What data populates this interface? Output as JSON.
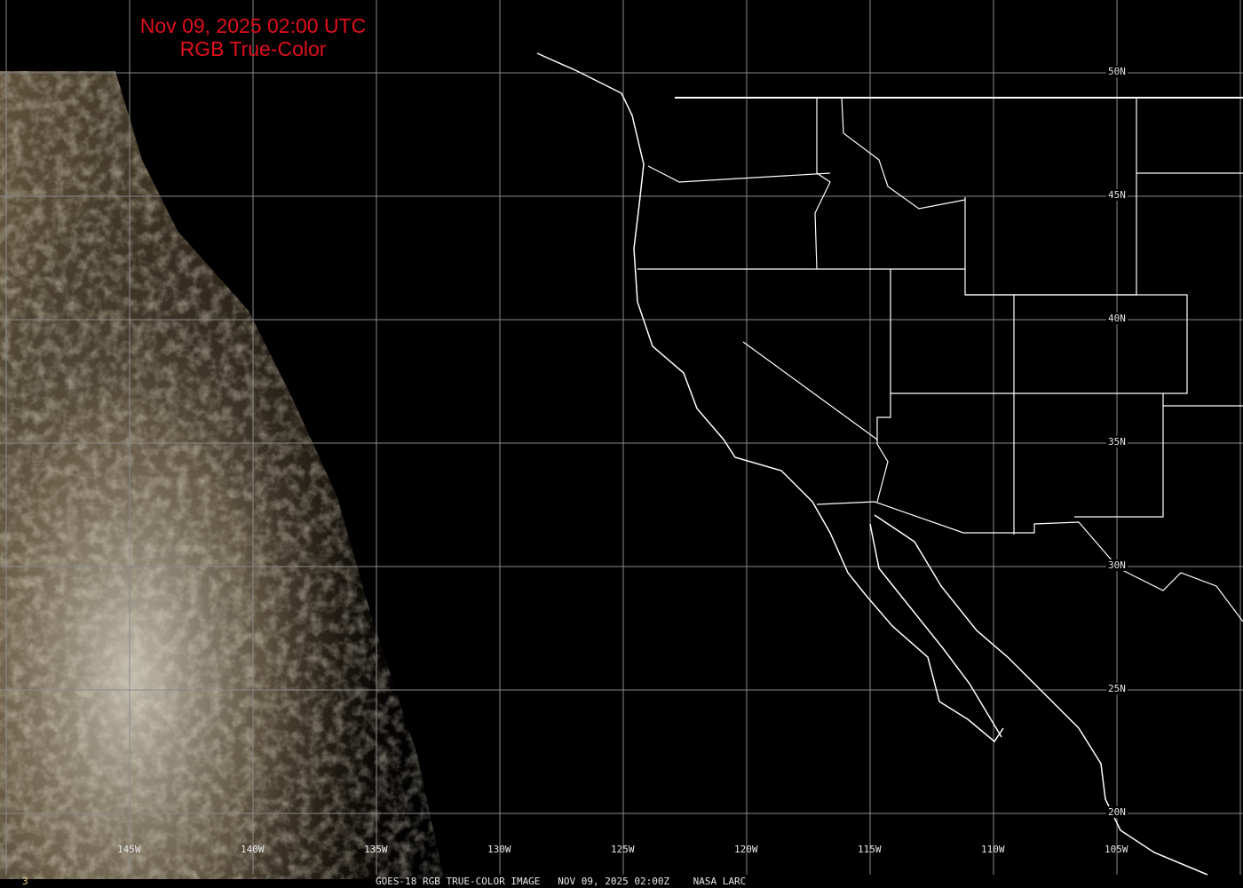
{
  "header": {
    "title_line1": "Nov 09, 2025 02:00 UTC",
    "title_line2": "RGB True-Color"
  },
  "longitude_labels": [
    "145W",
    "140W",
    "135W",
    "130W",
    "125W",
    "120W",
    "115W",
    "110W",
    "105W"
  ],
  "latitude_labels": [
    "50N",
    "45N",
    "40N",
    "35N",
    "30N",
    "25N",
    "20N"
  ],
  "footer": {
    "frame_number": "3",
    "caption": "GOES-18 RGB TRUE-COLOR IMAGE   NOV 09, 2025 02:00Z    NASA LARC"
  },
  "colors": {
    "title": "#e0101c",
    "grid": "#8a8a8a",
    "boundaries": "#ffffff",
    "frame_number": "#e8d070"
  }
}
